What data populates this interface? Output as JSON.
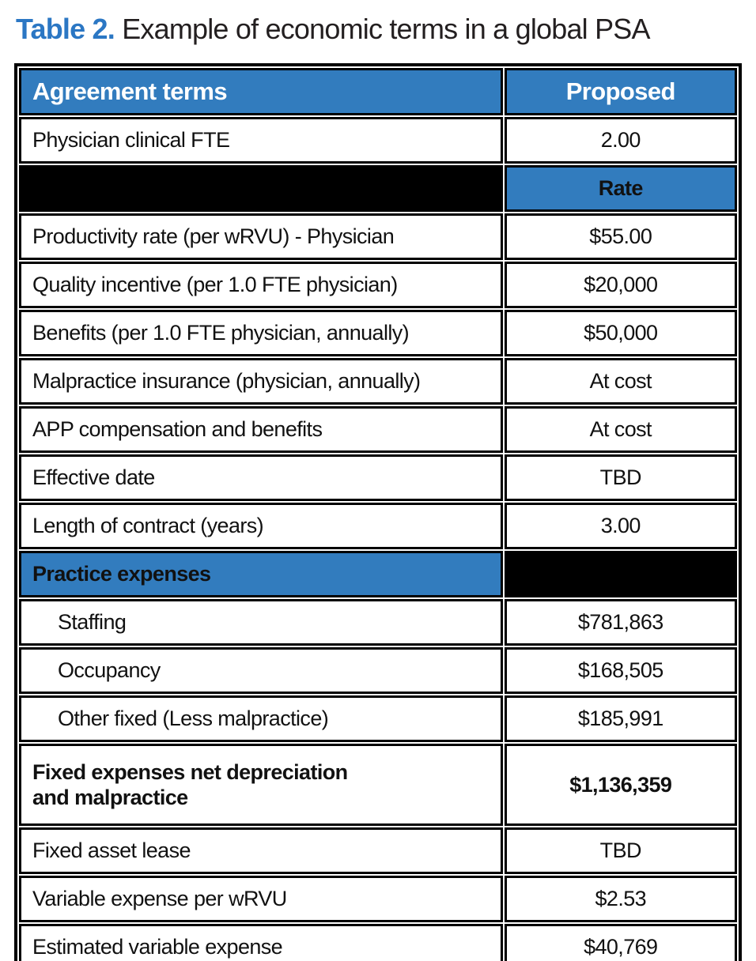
{
  "title": {
    "label": "Table 2.",
    "text": "Example of economic terms in a global PSA"
  },
  "colors": {
    "header_blue": "#327cbe",
    "caption_blue": "#2b77c4",
    "spacer_black": "#000000",
    "body_text": "#111111",
    "header_text": "#ffffff"
  },
  "table": {
    "columns": [
      {
        "label": "Agreement terms"
      },
      {
        "label": "Proposed"
      }
    ],
    "rows": [
      {
        "type": "data",
        "label": "Physician clinical FTE",
        "value": "2.00"
      },
      {
        "type": "rate_header",
        "label": "",
        "value": "Rate"
      },
      {
        "type": "data",
        "label": "Productivity rate (per wRVU) - Physician",
        "value": "$55.00"
      },
      {
        "type": "data",
        "label": "Quality incentive (per 1.0 FTE physician)",
        "value": "$20,000"
      },
      {
        "type": "data",
        "label": "Benefits (per 1.0 FTE physician, annually)",
        "value": "$50,000"
      },
      {
        "type": "data",
        "label": "Malpractice insurance (physician, annually)",
        "value": "At cost"
      },
      {
        "type": "data",
        "label": "APP compensation and benefits",
        "value": "At cost"
      },
      {
        "type": "data",
        "label": "Effective date",
        "value": "TBD"
      },
      {
        "type": "data",
        "label": "Length of contract (years)",
        "value": "3.00"
      },
      {
        "type": "section",
        "label": "Practice expenses",
        "value": ""
      },
      {
        "type": "data",
        "label": "Staffing",
        "value": "$781,863",
        "indent": true
      },
      {
        "type": "data",
        "label": "Occupancy",
        "value": "$168,505",
        "indent": true
      },
      {
        "type": "data",
        "label": "Other fixed (Less malpractice)",
        "value": "$185,991",
        "indent": true
      },
      {
        "type": "data",
        "label": "Fixed expenses net depreciation\nand malpractice",
        "value": "$1,136,359",
        "bold": true,
        "tall": true
      },
      {
        "type": "data",
        "label": "Fixed asset lease",
        "value": "TBD"
      },
      {
        "type": "data",
        "label": "Variable expense per wRVU",
        "value": "$2.53"
      },
      {
        "type": "data",
        "label": "Estimated variable expense",
        "value": "$40,769"
      }
    ]
  }
}
